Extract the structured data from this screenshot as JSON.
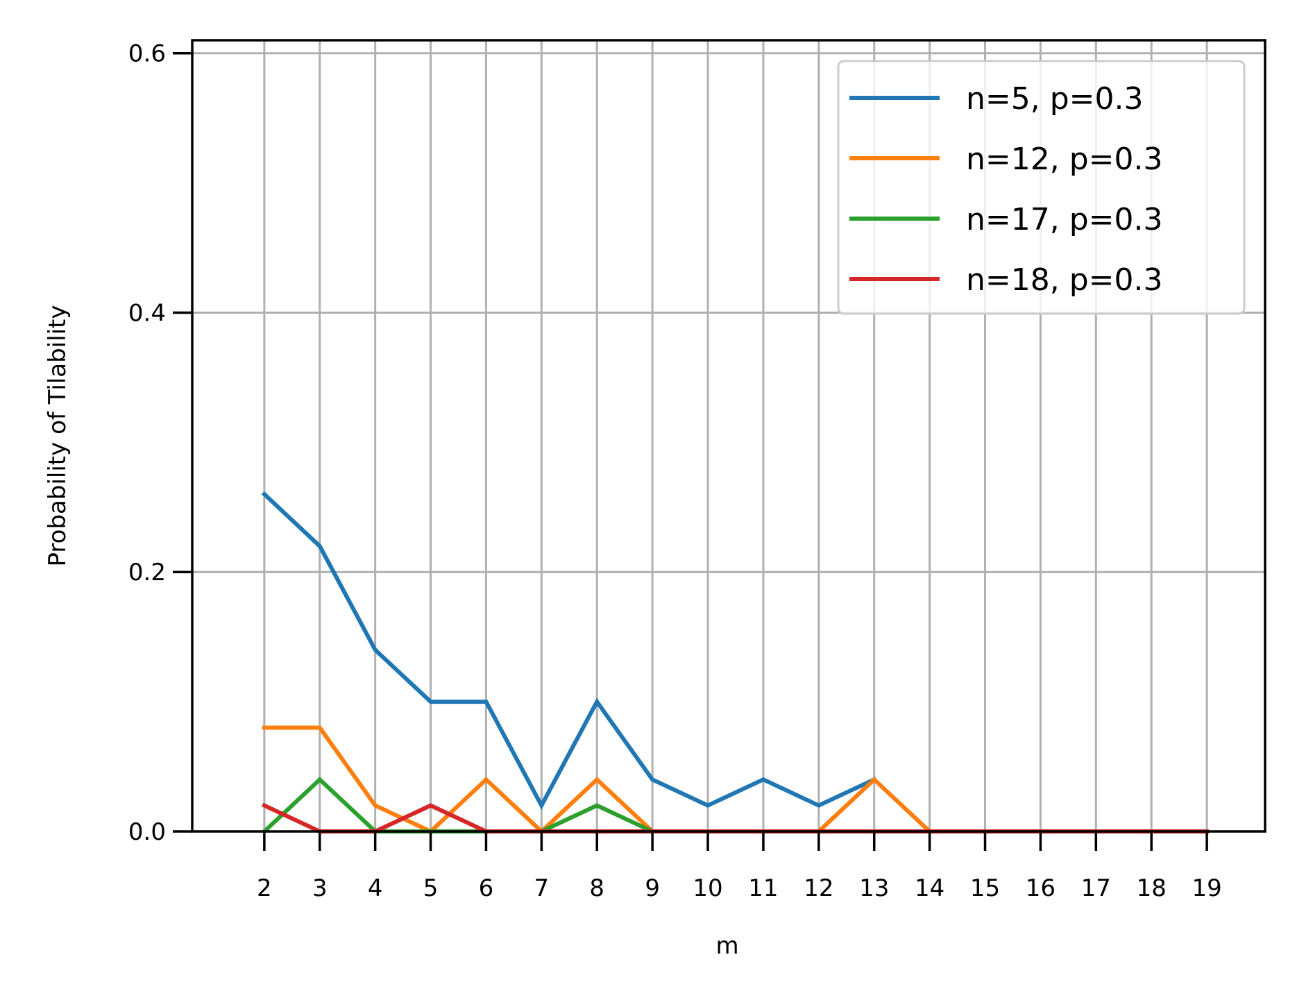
{
  "chart_data": {
    "type": "line",
    "xlabel": "m",
    "ylabel": "Probability of Tilability",
    "x": [
      2,
      3,
      4,
      5,
      6,
      7,
      8,
      9,
      10,
      11,
      12,
      13,
      14,
      15,
      16,
      17,
      18,
      19
    ],
    "xticks": [
      "2",
      "3",
      "4",
      "5",
      "6",
      "7",
      "8",
      "9",
      "10",
      "11",
      "12",
      "13",
      "14",
      "15",
      "16",
      "17",
      "18",
      "19"
    ],
    "yticks": [
      "0.0",
      "0.2",
      "0.4",
      "0.6"
    ],
    "xlim": [
      0.7,
      20.05
    ],
    "ylim": [
      0,
      0.61
    ],
    "grid": true,
    "legend_position": "top-right",
    "series": [
      {
        "name": "n=5, p=0.3",
        "color": "#1f77b4",
        "values": [
          0.26,
          0.22,
          0.14,
          0.1,
          0.1,
          0.02,
          0.1,
          0.04,
          0.02,
          0.04,
          0.02,
          0.04,
          null,
          null,
          null,
          null,
          null,
          null
        ]
      },
      {
        "name": "n=12, p=0.3",
        "color": "#ff7f0e",
        "values": [
          0.08,
          0.08,
          0.02,
          0.0,
          0.04,
          0.0,
          0.04,
          0.0,
          0.0,
          0.0,
          0.0,
          0.04,
          0.0,
          0.0,
          0.0,
          0.0,
          0.0,
          0.0
        ]
      },
      {
        "name": "n=17, p=0.3",
        "color": "#2ca02c",
        "values": [
          0.0,
          0.04,
          0.0,
          0.0,
          0.0,
          0.0,
          0.02,
          0.0,
          0.0,
          0.0,
          0.0,
          0.0,
          0.0,
          0.0,
          0.0,
          0.0,
          0.0,
          0.0
        ]
      },
      {
        "name": "n=18, p=0.3",
        "color": "#d62728",
        "values": [
          0.02,
          0.0,
          0.0,
          0.02,
          0.0,
          0.0,
          0.0,
          0.0,
          0.0,
          0.0,
          0.0,
          0.0,
          0.0,
          0.0,
          0.0,
          0.0,
          0.0,
          0.0
        ]
      }
    ]
  }
}
